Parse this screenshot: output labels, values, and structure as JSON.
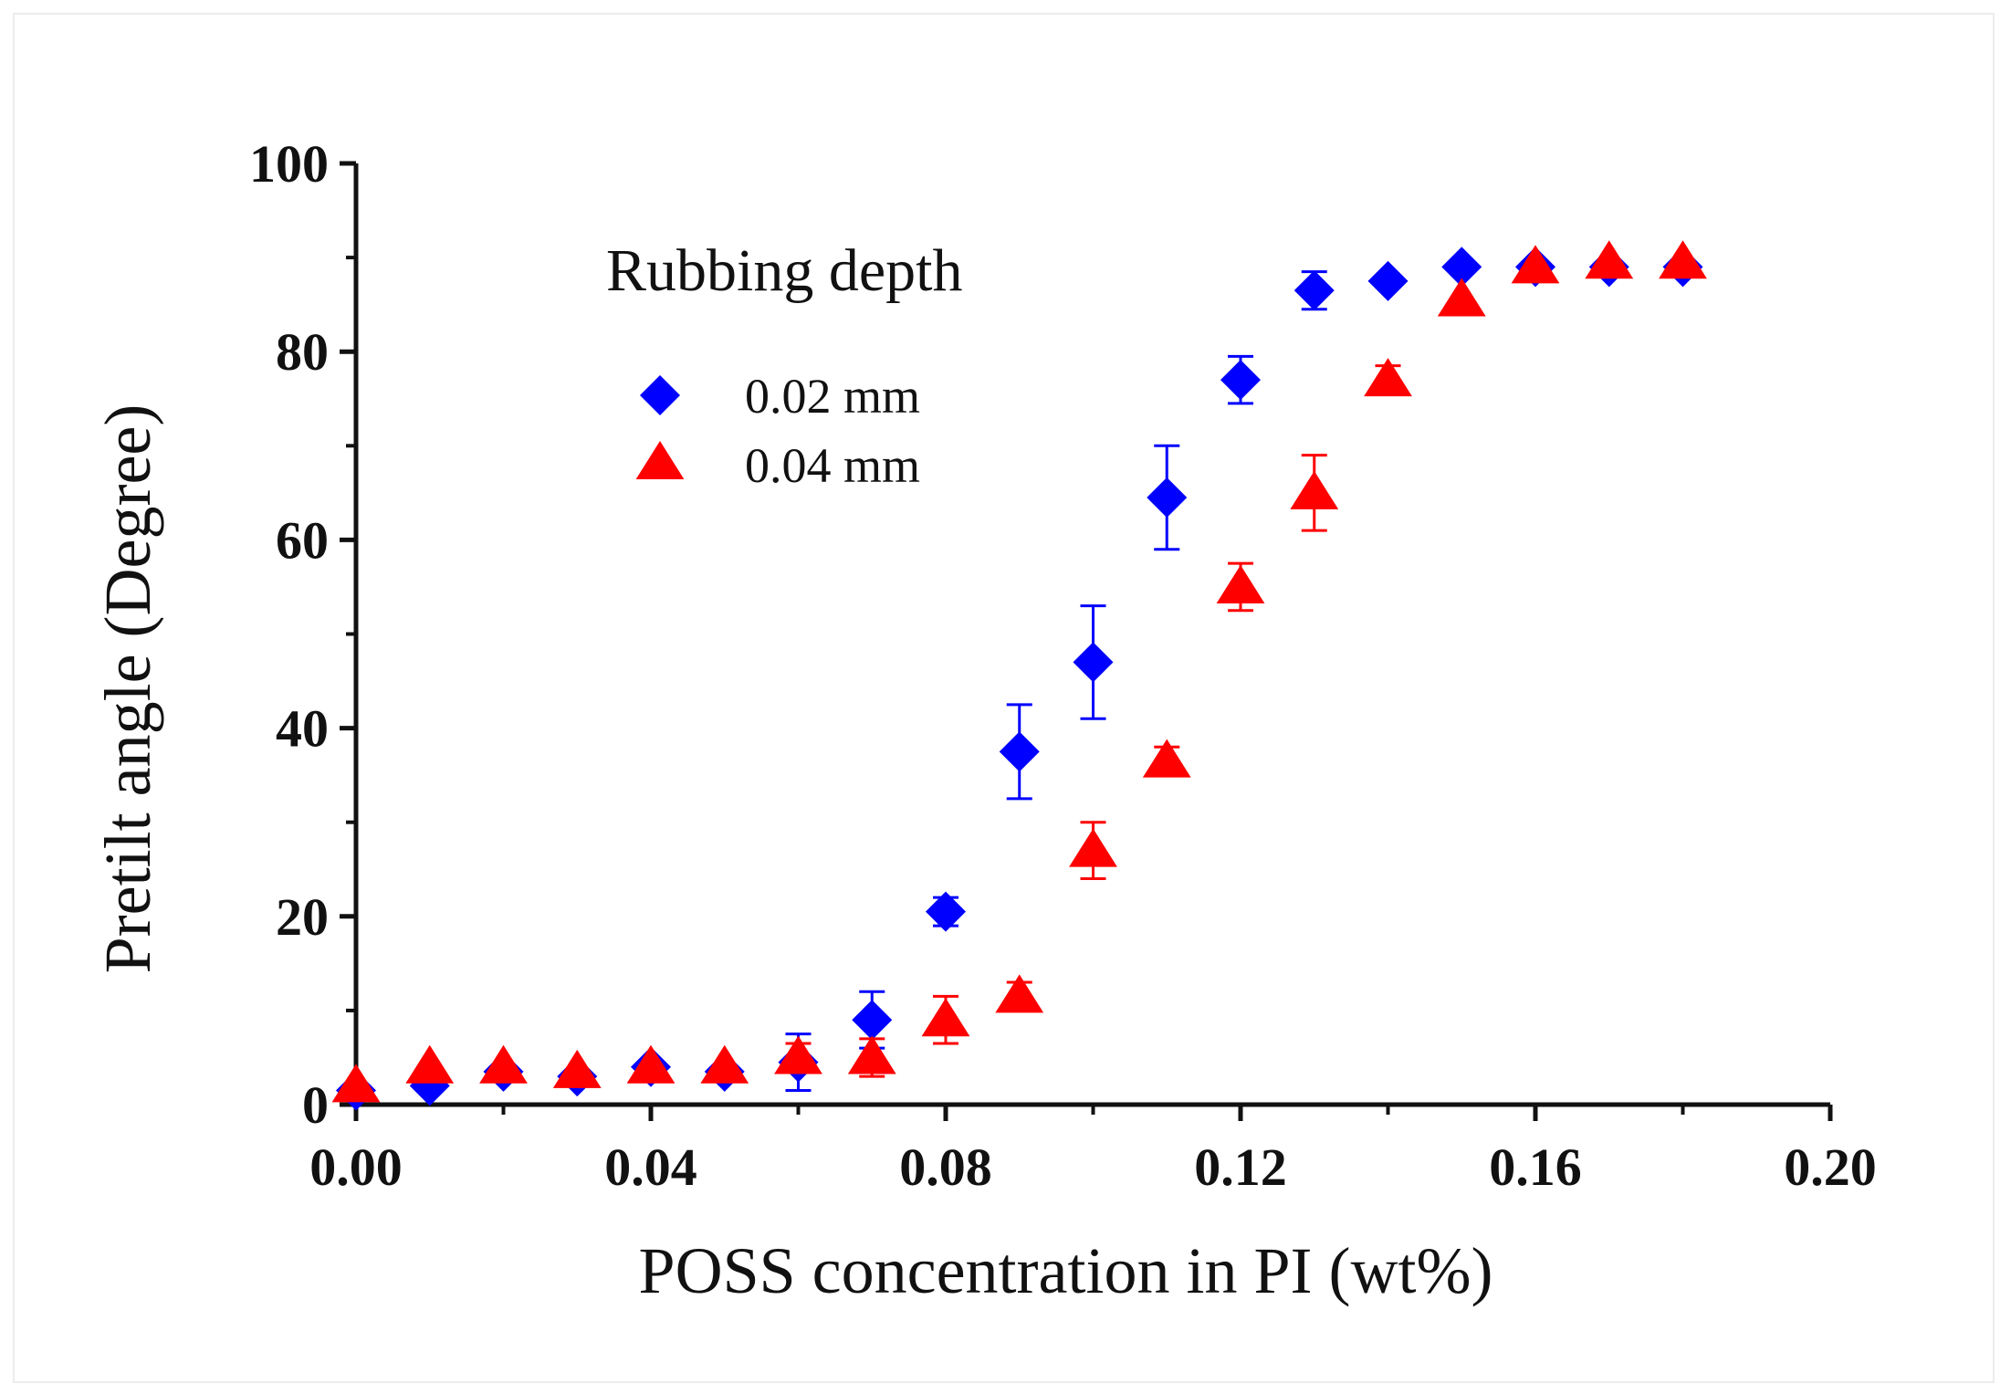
{
  "chart_data": {
    "type": "scatter",
    "title": "",
    "xlabel": "POSS concentration in PI (wt%)",
    "ylabel": "Pretilt angle (Degree)",
    "xlim": [
      0.0,
      0.2
    ],
    "ylim": [
      0,
      100
    ],
    "x_ticks": [
      0.0,
      0.04,
      0.08,
      0.12,
      0.16,
      0.2
    ],
    "x_tick_labels": [
      "0.00",
      "0.04",
      "0.08",
      "0.12",
      "0.16",
      "0.20"
    ],
    "y_ticks": [
      0,
      20,
      40,
      60,
      80,
      100
    ],
    "y_tick_labels": [
      "0",
      "20",
      "40",
      "60",
      "80",
      "100"
    ],
    "grid": false,
    "legend": {
      "title": "Rubbing depth",
      "position": "top-left"
    },
    "series": [
      {
        "name": "0.02 mm",
        "marker": "diamond",
        "color": "#0000ff",
        "x": [
          0.0,
          0.01,
          0.02,
          0.03,
          0.04,
          0.05,
          0.06,
          0.07,
          0.08,
          0.09,
          0.1,
          0.11,
          0.12,
          0.13,
          0.14,
          0.15,
          0.16,
          0.17,
          0.18
        ],
        "y": [
          1.5,
          2.0,
          3.5,
          3.0,
          4.0,
          3.5,
          4.5,
          9.0,
          20.5,
          37.5,
          47.0,
          64.5,
          77.0,
          86.5,
          87.5,
          89.0,
          89.0,
          89.0,
          89.0
        ],
        "err": [
          0.5,
          0.5,
          0.5,
          0.5,
          0.5,
          0.5,
          3.0,
          3.0,
          1.5,
          5.0,
          6.0,
          5.5,
          2.5,
          2.0,
          0.5,
          0.5,
          0.5,
          0.5,
          0.5
        ]
      },
      {
        "name": "0.04 mm",
        "marker": "triangle",
        "color": "#ff0000",
        "x": [
          0.0,
          0.01,
          0.02,
          0.03,
          0.04,
          0.05,
          0.06,
          0.07,
          0.08,
          0.09,
          0.1,
          0.11,
          0.12,
          0.13,
          0.14,
          0.15,
          0.16,
          0.17,
          0.18
        ],
        "y": [
          2.0,
          4.0,
          4.0,
          3.5,
          4.0,
          4.0,
          5.0,
          5.0,
          9.0,
          11.5,
          27.0,
          36.5,
          55.0,
          65.0,
          77.0,
          85.5,
          89.0,
          89.5,
          89.5
        ],
        "err": [
          0.5,
          0.5,
          0.5,
          0.5,
          0.5,
          0.5,
          1.5,
          2.0,
          2.5,
          1.5,
          3.0,
          1.5,
          2.5,
          4.0,
          1.5,
          0.5,
          0.5,
          0.5,
          0.5
        ]
      }
    ]
  }
}
